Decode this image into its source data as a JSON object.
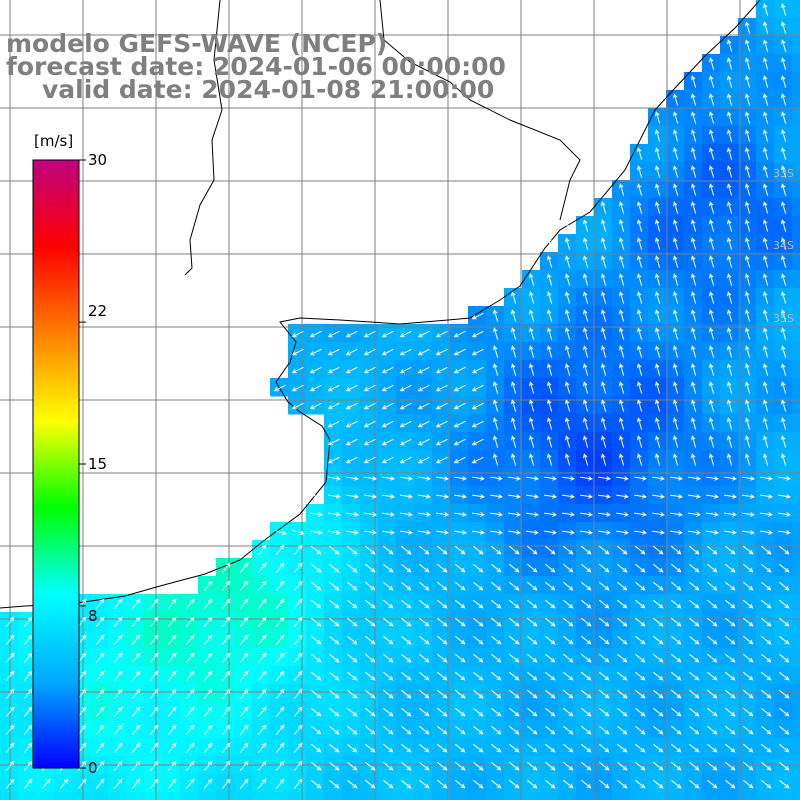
{
  "title": {
    "line1": "modelo GEFS-WAVE (NCEP)",
    "line2": "forecast date: 2024-01-06 00:00:00",
    "line3": "valid date: 2024-01-08 21:00:00"
  },
  "colorbar": {
    "unit": "[m/s]",
    "ticks": [
      {
        "value": 30,
        "label": "30"
      },
      {
        "value": 22,
        "label": "22"
      },
      {
        "value": 15,
        "label": "15"
      },
      {
        "value": 8,
        "label": "8"
      },
      {
        "value": 0,
        "label": "0"
      }
    ],
    "colors": [
      "#0000ff",
      "#00aaff",
      "#00ffff",
      "#00ff00",
      "#ffff00",
      "#ff7f00",
      "#ff0000",
      "#c0007f"
    ]
  },
  "lat_labels": [
    "33S",
    "34S",
    "35S"
  ],
  "colors": {
    "land": "#ffffff",
    "coast": "#000000",
    "grid": "#7f7f7f",
    "arrow": "#ffffff"
  }
}
